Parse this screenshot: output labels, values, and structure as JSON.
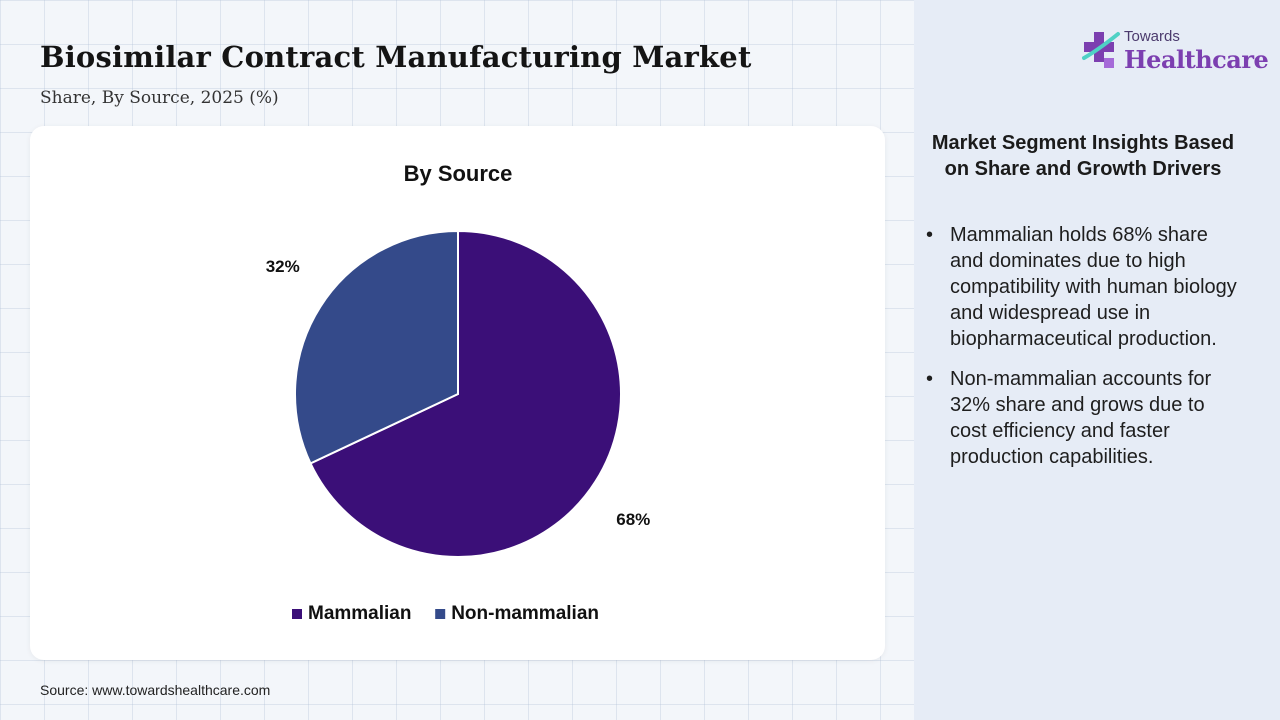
{
  "header": {
    "title": "Biosimilar Contract Manufacturing Market",
    "subtitle": "Share, By Source, 2025 (%)"
  },
  "logo": {
    "top_text": "Towards",
    "main_text": "Healthcare",
    "icon": "medical-cross-icon"
  },
  "chart_data": {
    "type": "pie",
    "title": "By Source",
    "categories": [
      "Mammalian",
      "Non-mammalian"
    ],
    "values": [
      68,
      32
    ],
    "labels": [
      "68%",
      "32%"
    ],
    "colors": [
      "#3b0f78",
      "#344a8a"
    ],
    "legend": "bottom",
    "start_angle": "12 o'clock, clockwise"
  },
  "insights": {
    "title": "Market Segment Insights Based on Share and Growth Drivers",
    "bullets": [
      "Mammalian holds 68% share and dominates due to high compatibility with human biology and widespread use in biopharmaceutical production.",
      "Non-mammalian accounts for 32% share and grows due to cost efficiency and faster production capabilities."
    ]
  },
  "footer": {
    "source": "Source: www.towardshealthcare.com"
  }
}
